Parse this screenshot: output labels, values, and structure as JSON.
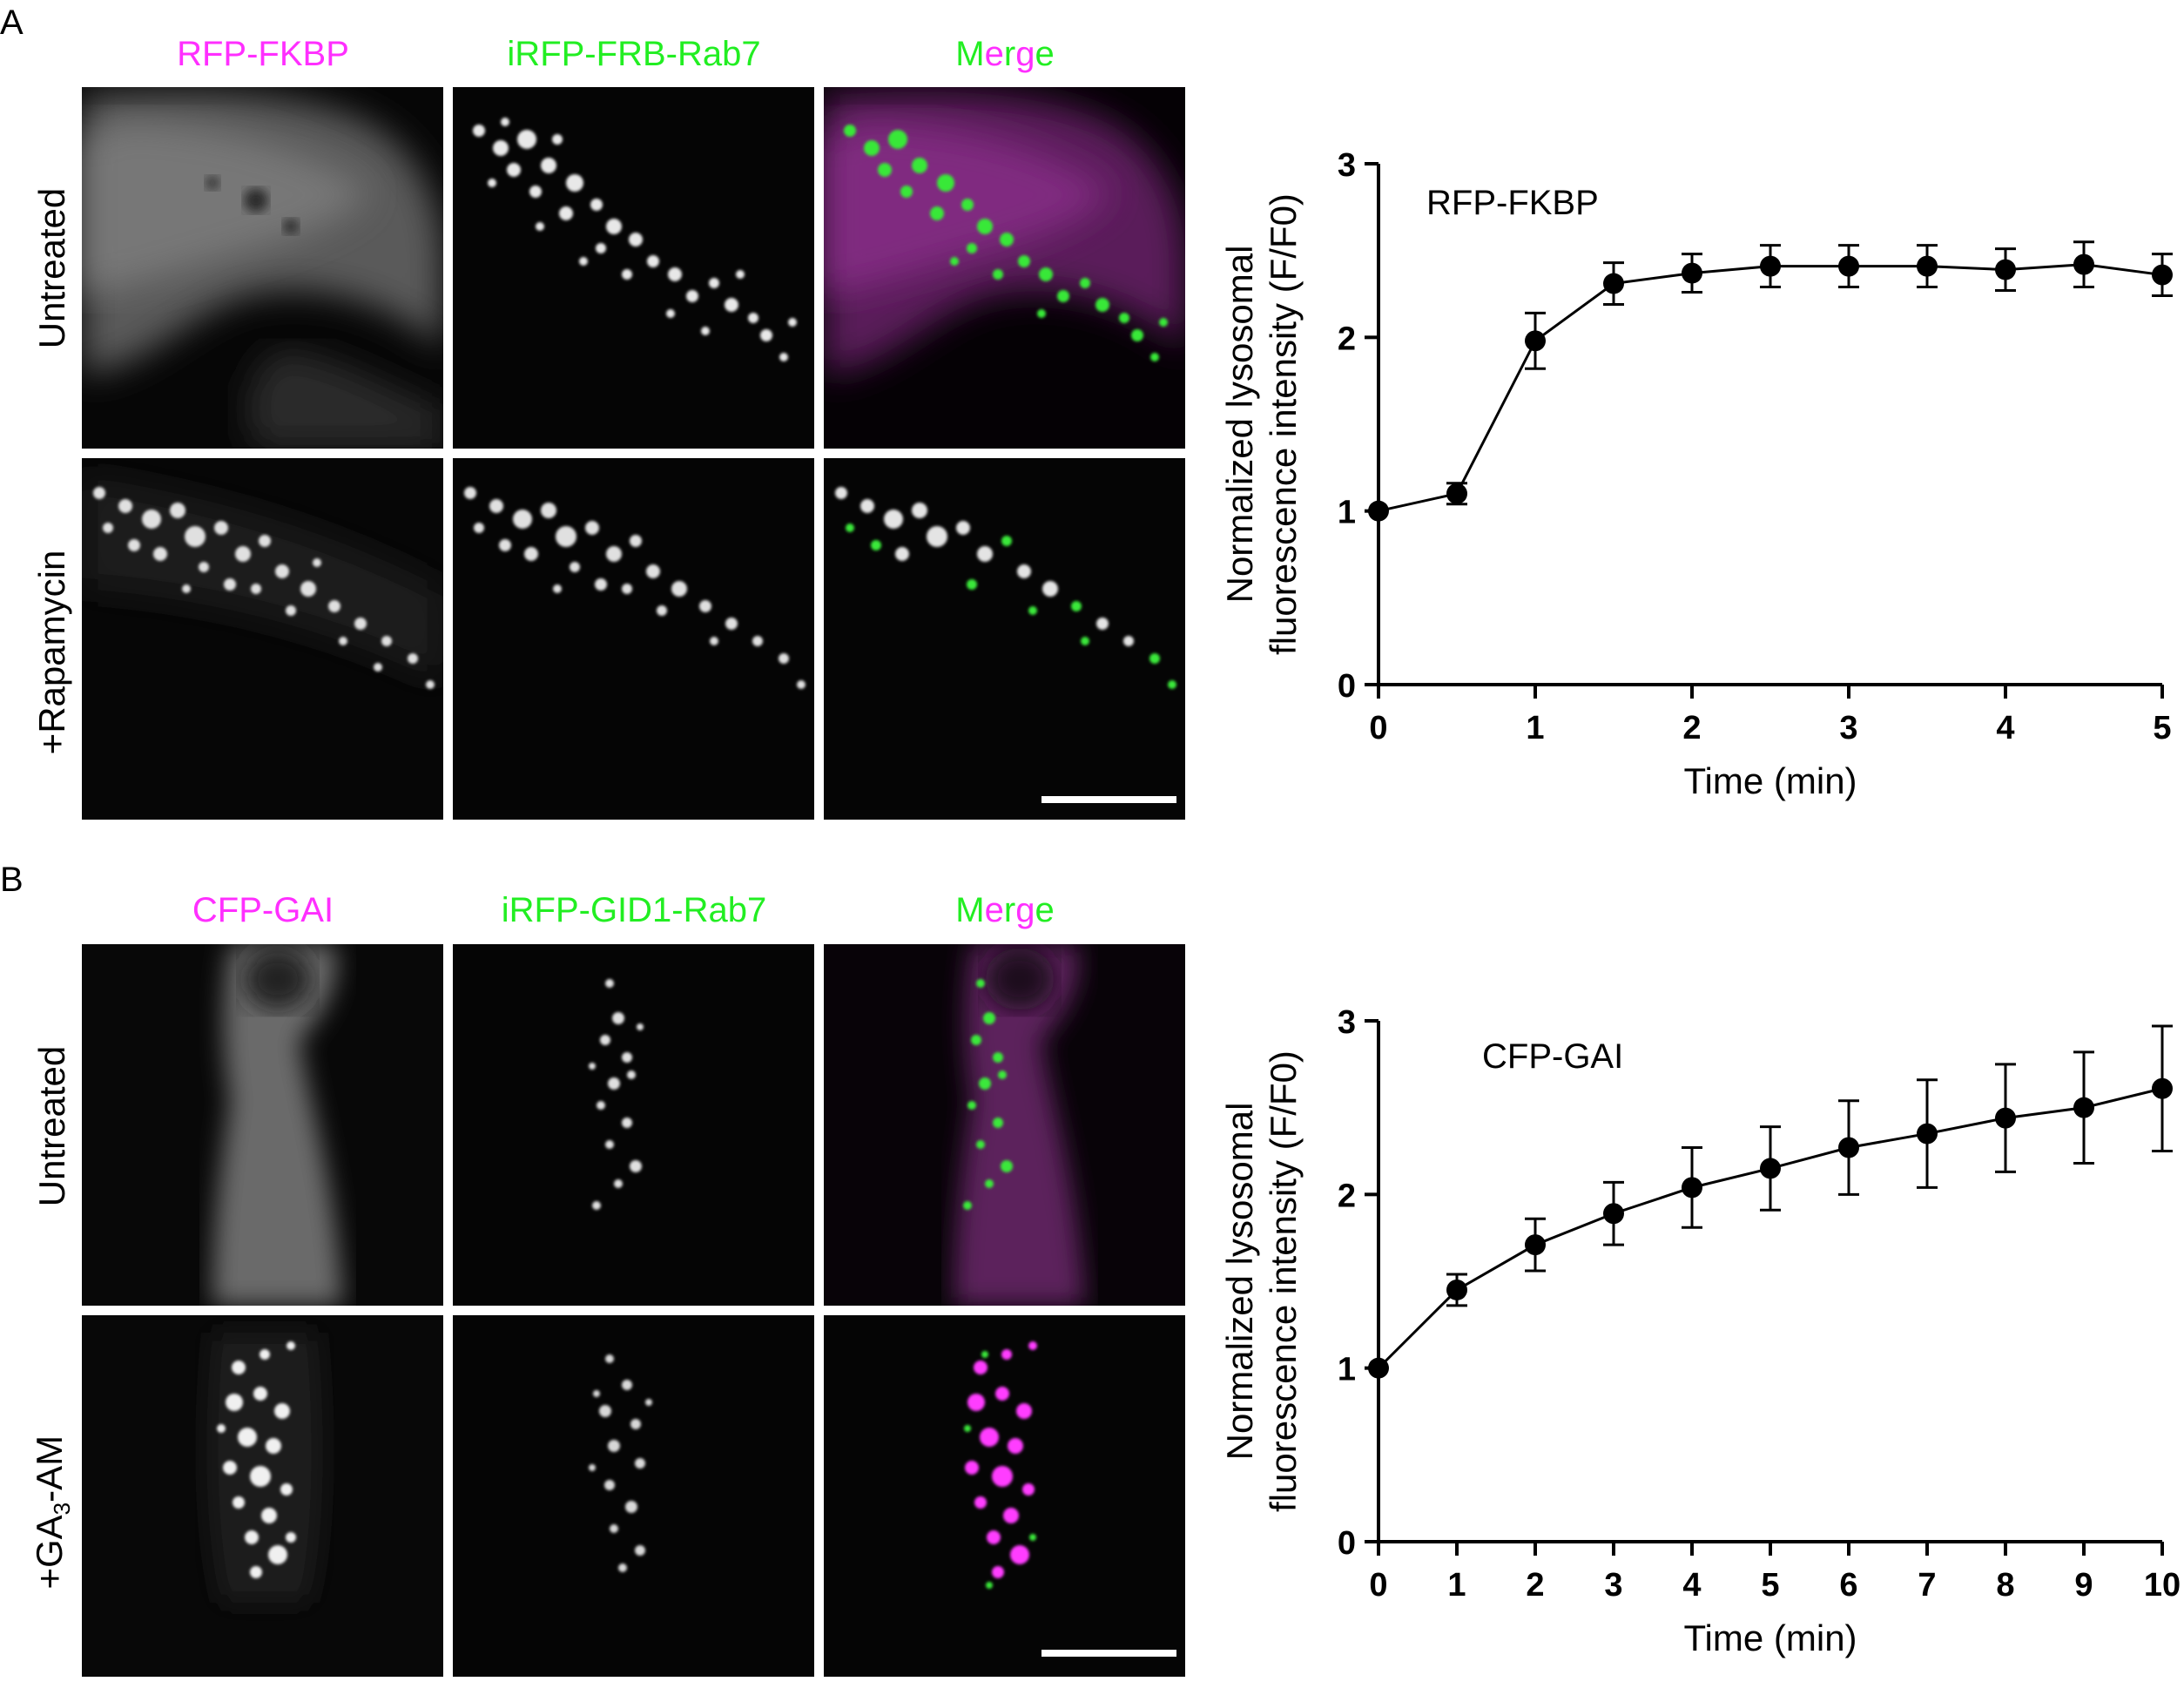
{
  "panels": [
    {
      "letter": "A",
      "columns": [
        {
          "label": "RFP-FKBP",
          "color": "#ff2fff"
        },
        {
          "label": "iRFP-FRB-Rab7",
          "color": "#22ee22"
        },
        {
          "label_parts": [
            {
              "text": "M",
              "color": "#22ee22"
            },
            {
              "text": "e",
              "color": "#ff2fff"
            },
            {
              "text": "r",
              "color": "#22ee22"
            },
            {
              "text": "g",
              "color": "#ff2fff"
            },
            {
              "text": "e",
              "color": "#22ee22"
            }
          ]
        }
      ],
      "rows": [
        {
          "label": "Untreated"
        },
        {
          "label": "+Rapamycin"
        }
      ]
    },
    {
      "letter": "B",
      "columns": [
        {
          "label": "CFP-GAI",
          "color": "#ff2fff"
        },
        {
          "label": "iRFP-GID1-Rab7",
          "color": "#22ee22"
        },
        {
          "label_parts": [
            {
              "text": "M",
              "color": "#22ee22"
            },
            {
              "text": "e",
              "color": "#ff2fff"
            },
            {
              "text": "r",
              "color": "#22ee22"
            },
            {
              "text": "g",
              "color": "#ff2fff"
            },
            {
              "text": "e",
              "color": "#22ee22"
            }
          ]
        }
      ],
      "rows": [
        {
          "label": "Untreated"
        },
        {
          "label_main": "+GA",
          "label_sub": "3",
          "label_tail": "-AM"
        }
      ]
    }
  ],
  "chart_data": [
    {
      "type": "line",
      "annotation": "RFP-FKBP",
      "xlabel": "Time (min)",
      "ylabel_lines": [
        "Normalized lysosomal",
        "fluorescence intensity (F/F0)"
      ],
      "xlim": [
        0,
        5
      ],
      "ylim": [
        0,
        3
      ],
      "xticks": [
        0,
        1,
        2,
        3,
        4,
        5
      ],
      "yticks": [
        0,
        1,
        2,
        3
      ],
      "x": [
        0,
        0.5,
        1,
        1.5,
        2,
        2.5,
        3,
        3.5,
        4,
        4.5,
        5
      ],
      "y": [
        1.0,
        1.1,
        1.98,
        2.31,
        2.37,
        2.41,
        2.41,
        2.41,
        2.39,
        2.42,
        2.36
      ],
      "err": [
        0.02,
        0.06,
        0.16,
        0.12,
        0.11,
        0.12,
        0.12,
        0.12,
        0.12,
        0.13,
        0.12
      ],
      "grid": false
    },
    {
      "type": "line",
      "annotation": "CFP-GAI",
      "xlabel": "Time (min)",
      "ylabel_lines": [
        "Normalized lysosomal",
        "fluorescence intensity (F/F0)"
      ],
      "xlim": [
        0,
        10
      ],
      "ylim": [
        0,
        3
      ],
      "xticks": [
        0,
        1,
        2,
        3,
        4,
        5,
        6,
        7,
        8,
        9,
        10
      ],
      "yticks": [
        0,
        1,
        2,
        3
      ],
      "x": [
        0,
        1,
        2,
        3,
        4,
        5,
        6,
        7,
        8,
        9,
        10
      ],
      "y": [
        1.0,
        1.45,
        1.71,
        1.89,
        2.04,
        2.15,
        2.27,
        2.35,
        2.44,
        2.5,
        2.61
      ],
      "err": [
        0.02,
        0.09,
        0.15,
        0.18,
        0.23,
        0.24,
        0.27,
        0.31,
        0.31,
        0.32,
        0.36
      ],
      "grid": false
    }
  ]
}
